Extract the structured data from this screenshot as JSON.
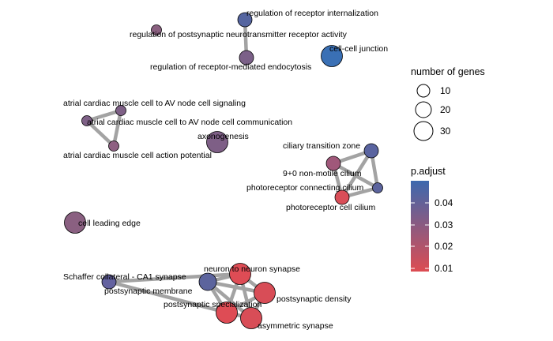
{
  "nodes": [
    {
      "id": "n1",
      "label": "regulation of receptor internalization",
      "color": "#5565a0",
      "size": "small"
    },
    {
      "id": "n2",
      "label": "regulation of postsynaptic neurotransmitter receptor activity",
      "color": "#8a6080",
      "size": "tiny"
    },
    {
      "id": "n3",
      "label": "regulation of receptor-mediated endocytosis",
      "color": "#7b6088",
      "size": "small"
    },
    {
      "id": "n4",
      "label": "cell-cell junction",
      "color": "#3a70b5",
      "size": "large"
    },
    {
      "id": "n5",
      "label": "atrial cardiac muscle cell to AV node cell signaling",
      "color": "#7e6086",
      "size": "tiny"
    },
    {
      "id": "n6",
      "label": "atrial cardiac muscle cell to AV node cell communication",
      "color": "#7e6086",
      "size": "tiny"
    },
    {
      "id": "n7",
      "label": "atrial cardiac muscle cell action potential",
      "color": "#8e6082",
      "size": "tiny"
    },
    {
      "id": "n8",
      "label": "axonogenesis",
      "color": "#7e5f86",
      "size": "large"
    },
    {
      "id": "n9",
      "label": "ciliary transition zone",
      "color": "#5a64a0",
      "size": "small"
    },
    {
      "id": "n10",
      "label": "9+0 non-motile cilium",
      "color": "#a0587a",
      "size": "small"
    },
    {
      "id": "n11",
      "label": "photoreceptor connecting cilium",
      "color": "#5c649d",
      "size": "tiny"
    },
    {
      "id": "n12",
      "label": "photoreceptor cell cilium",
      "color": "#d94e58",
      "size": "small"
    },
    {
      "id": "n13",
      "label": "cell leading edge",
      "color": "#8a6081",
      "size": "large"
    },
    {
      "id": "n14",
      "label": "Schaffer collateral - CA1 synapse",
      "color": "#5c649d",
      "size": "medium"
    },
    {
      "id": "n15",
      "label": "postsynaptic membrane",
      "color": "#6462a0",
      "size": "small"
    },
    {
      "id": "n16",
      "label": "neuron to neuron synapse",
      "color": "#de4c55",
      "size": "large"
    },
    {
      "id": "n17",
      "label": "postsynaptic density",
      "color": "#d84d57",
      "size": "large"
    },
    {
      "id": "n18",
      "label": "postsynaptic specialization",
      "color": "#de4c55",
      "size": "large"
    },
    {
      "id": "n19",
      "label": "asymmetric synapse",
      "color": "#d84d57",
      "size": "large"
    }
  ],
  "edges": [
    [
      "n1",
      "n3"
    ],
    [
      "n5",
      "n6"
    ],
    [
      "n5",
      "n7"
    ],
    [
      "n6",
      "n7"
    ],
    [
      "n9",
      "n10"
    ],
    [
      "n9",
      "n11"
    ],
    [
      "n9",
      "n12"
    ],
    [
      "n10",
      "n11"
    ],
    [
      "n10",
      "n12"
    ],
    [
      "n11",
      "n12"
    ],
    [
      "n14",
      "n16"
    ],
    [
      "n14",
      "n17"
    ],
    [
      "n14",
      "n18"
    ],
    [
      "n14",
      "n19"
    ],
    [
      "n16",
      "n17"
    ],
    [
      "n16",
      "n18"
    ],
    [
      "n16",
      "n19"
    ],
    [
      "n17",
      "n18"
    ],
    [
      "n17",
      "n19"
    ],
    [
      "n18",
      "n19"
    ],
    [
      "n15",
      "n16"
    ],
    [
      "n15",
      "n18"
    ]
  ],
  "legend_size": {
    "title": "number of genes",
    "entries": [
      {
        "label": "10"
      },
      {
        "label": "20"
      },
      {
        "label": "30"
      }
    ]
  },
  "legend_color": {
    "title": "p.adjust",
    "gradient_top": "#3c68ae",
    "gradient_bottom": "#dd4c52",
    "ticks": [
      "0.04",
      "0.03",
      "0.02",
      "0.01"
    ]
  },
  "colors": {
    "edge": "#a3a3a3",
    "node_stroke": "#000000"
  }
}
